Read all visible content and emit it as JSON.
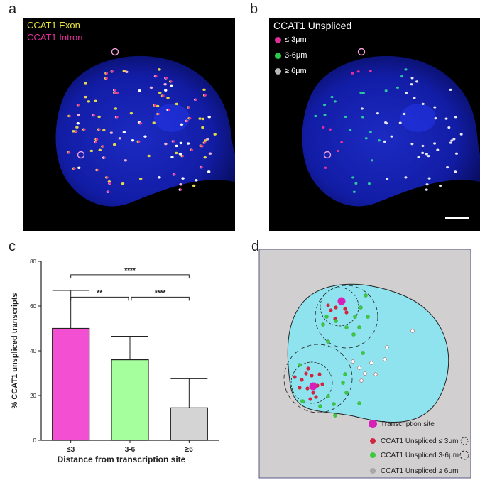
{
  "panels": {
    "a": {
      "letter": "a",
      "legend": [
        "CCAT1 Exon",
        "CCAT1 Intron"
      ],
      "legend_colors": [
        "#e6e23a",
        "#e0309a"
      ]
    },
    "b": {
      "letter": "b",
      "title": "CCAT1 Unspliced",
      "legend": [
        {
          "label": "≤ 3μm",
          "color": "#e0309a"
        },
        {
          "label": "3-6μm",
          "color": "#2ec84a"
        },
        {
          "label": "≥ 6μm",
          "color": "#b8b8b8"
        }
      ]
    },
    "c": {
      "letter": "c"
    },
    "d": {
      "letter": "d"
    }
  },
  "chart_data": {
    "type": "bar",
    "categories": [
      "≤3",
      "3-6",
      "≥6"
    ],
    "values": [
      50,
      36,
      14.5
    ],
    "errors": [
      17,
      10.5,
      13
    ],
    "colors": [
      "#f24fd2",
      "#a4ff9c",
      "#d4d4d4"
    ],
    "xlabel": "Distance from transcription site",
    "ylabel": "% CCAT1 unspliced transcripts",
    "ylim": [
      0,
      80
    ],
    "yticks": [
      0,
      20,
      40,
      60,
      80
    ],
    "significance": [
      {
        "from": 0,
        "to": 1,
        "label": "**"
      },
      {
        "from": 1,
        "to": 2,
        "label": "****"
      },
      {
        "from": 0,
        "to": 2,
        "label": "****"
      }
    ]
  },
  "diagram": {
    "legend": [
      {
        "label": "Transcription site",
        "color": "#d620b8"
      },
      {
        "label": "CCAT1 Unspliced ≤ 3μm",
        "color": "#d12540"
      },
      {
        "label": "CCAT1 Unspliced  3-6μm",
        "color": "#3ec840"
      },
      {
        "label": "CCAT1 Unspliced ≥ 6μm",
        "color": "#a8a8a8"
      }
    ]
  }
}
